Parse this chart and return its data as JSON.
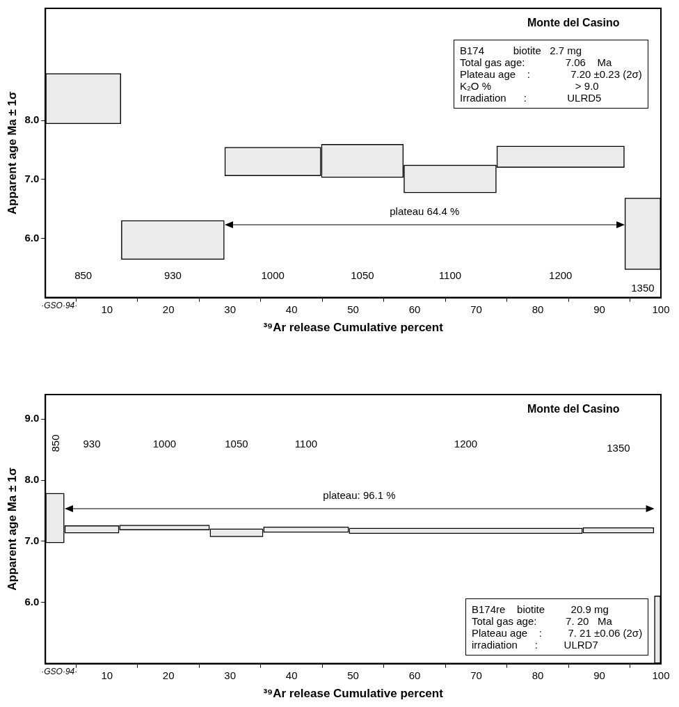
{
  "chart_data": [
    {
      "type": "bar",
      "title": "Monte del Casino",
      "xlabel": "³⁹Ar release Cumulative percent",
      "ylabel": "Apparent age Ma ± 1σ",
      "x": [
        6.15,
        20.7,
        36.95,
        51.5,
        65.75,
        83.7,
        97.05
      ],
      "base": [
        7.94,
        5.64,
        7.06,
        7.03,
        6.77,
        7.2,
        5.47
      ],
      "values": [
        0.86,
        0.67,
        0.49,
        0.57,
        0.48,
        0.37,
        1.22
      ],
      "color": "#000000",
      "xlim": [
        0,
        100
      ],
      "xticks": [
        10,
        20,
        30,
        40,
        50,
        60,
        70,
        80,
        90,
        100
      ],
      "ylim": [
        5.0,
        9.9
      ],
      "yticks": [
        {
          "value": 6,
          "label": "6.0"
        },
        {
          "value": 7,
          "label": "7.0"
        },
        {
          "value": 8,
          "label": "8.0"
        }
      ],
      "grid": false,
      "legend": false,
      "annotations": [
        "·GSO·94·",
        "plateau 64.4 %",
        "850",
        "930",
        "1000",
        "1050",
        "1100",
        "1200",
        "1350",
        "B174          biotite   2.7 mg",
        "Total gas age:              7.06    Ma",
        "Plateau age    :              7.20 ±0.23 (2σ)",
        "K₂O %                             > 9.0",
        "Irradiation      :              ULRD5"
      ]
    },
    {
      "type": "bar",
      "title": "Monte del Casino",
      "xlabel": "³⁹Ar release Cumulative percent",
      "ylabel": "Apparent age Ma ± 1σ",
      "x": [
        1.55,
        7.55,
        19.35,
        31.05,
        42.35,
        68.3,
        93.1,
        99.45
      ],
      "base": [
        6.97,
        7.13,
        7.18,
        7.07,
        7.14,
        7.12,
        7.13,
        5.0
      ],
      "values": [
        0.82,
        0.13,
        0.09,
        0.14,
        0.1,
        0.1,
        0.1,
        1.11
      ],
      "color": "#000000",
      "xlim": [
        0,
        100
      ],
      "xticks": [
        10,
        20,
        30,
        40,
        50,
        60,
        70,
        80,
        90,
        100
      ],
      "ylim": [
        5.0,
        9.4
      ],
      "yticks": [
        {
          "value": 6,
          "label": "6.0"
        },
        {
          "value": 7,
          "label": "7.0"
        },
        {
          "value": 8,
          "label": "8.0"
        },
        {
          "value": 9,
          "label": "9.0"
        }
      ],
      "grid": false,
      "legend": false,
      "annotations": [
        "·GSO·94·",
        "plateau: 96.1 %",
        "850",
        "930",
        "1000",
        "1050",
        "1100",
        "1200",
        "1350",
        "B174re    biotite         20.9 mg",
        "Total gas age:          7. 20   Ma",
        "Plateau age    :         7. 21 ±0.06 (2σ)",
        "irradiation      :         ULRD7"
      ]
    }
  ]
}
